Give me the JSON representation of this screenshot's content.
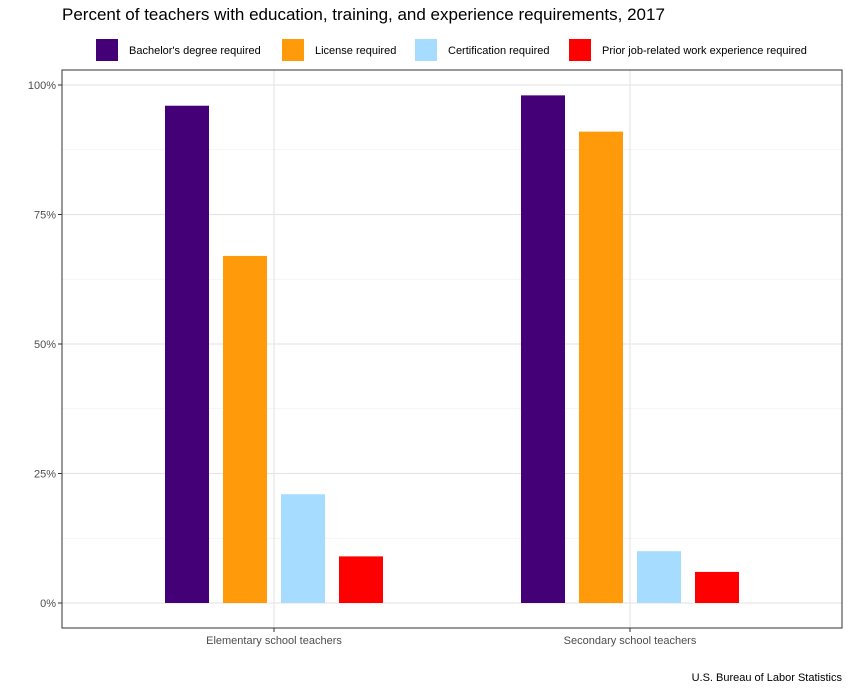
{
  "chart_data": {
    "type": "bar",
    "title": "Percent of teachers with education, training, and experience requirements, 2017",
    "caption": "U.S. Bureau of Labor Statistics",
    "xlabel": "",
    "ylabel": "",
    "categories": [
      "Elementary school teachers",
      "Secondary school teachers"
    ],
    "series": [
      {
        "name": "Bachelor's degree required",
        "color": "#440077",
        "values": [
          96,
          98
        ]
      },
      {
        "name": "License required",
        "color": "#ff9a0a",
        "values": [
          67,
          91
        ]
      },
      {
        "name": "Certification required",
        "color": "#a6dcff",
        "values": [
          21,
          10
        ]
      },
      {
        "name": "Prior job-related work experience required",
        "color": "#ff0000",
        "values": [
          9,
          6
        ]
      }
    ],
    "ylim": [
      0,
      100
    ],
    "yticks": [
      0,
      25,
      50,
      75,
      100
    ],
    "ytick_labels": [
      "0%",
      "25%",
      "50%",
      "75%",
      "100%"
    ],
    "grid": true,
    "legend_position": "top"
  }
}
